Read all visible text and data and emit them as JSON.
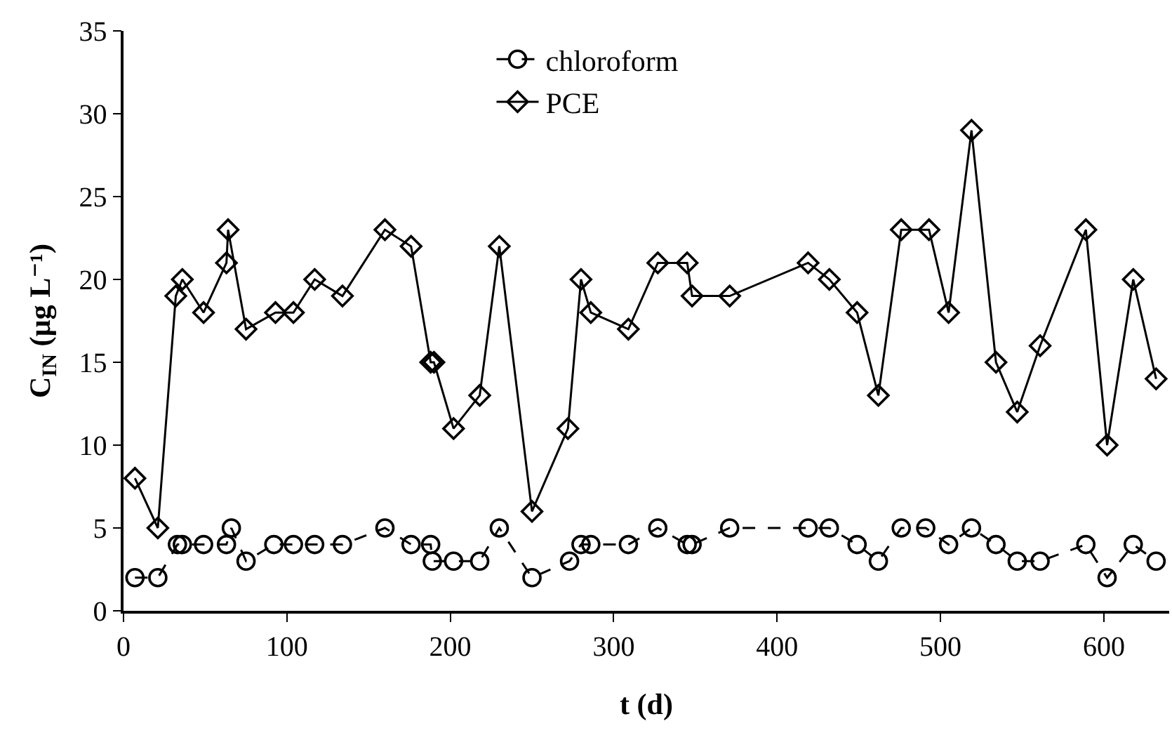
{
  "chart_data": {
    "type": "line",
    "xlabel": "t (d)",
    "ylabel": "C$_{IN}$ (µg L⁻¹)",
    "xlim": [
      0,
      640
    ],
    "xticks": [
      0,
      100,
      200,
      300,
      400,
      500,
      600
    ],
    "ylim": [
      0,
      35
    ],
    "yticks": [
      0,
      5,
      10,
      15,
      20,
      25,
      30,
      35
    ],
    "grid": false,
    "legend": "top",
    "series": [
      {
        "name": "chloroform",
        "color": "#000000",
        "marker": "circle",
        "line_style": "dashed",
        "x": [
          7,
          21,
          33,
          36,
          49,
          63,
          66,
          75,
          92,
          104,
          117,
          134,
          160,
          176,
          188,
          189,
          202,
          218,
          230,
          250,
          273,
          280,
          286,
          309,
          327,
          345,
          348,
          371,
          419,
          432,
          449,
          462,
          476,
          491,
          505,
          519,
          534,
          547,
          561,
          589,
          602,
          618,
          632
        ],
        "values": [
          2,
          2,
          4,
          4,
          4,
          4,
          5,
          3,
          4,
          4,
          4,
          4,
          5,
          4,
          4,
          3,
          3,
          3,
          5,
          2,
          3,
          4,
          4,
          4,
          5,
          4,
          4,
          5,
          5,
          5,
          4,
          3,
          5,
          5,
          4,
          5,
          4,
          3,
          3,
          4,
          2,
          4,
          3
        ]
      },
      {
        "name": "PCE",
        "color": "#000000",
        "marker": "diamond",
        "line_style": "solid",
        "x": [
          7,
          21,
          32,
          36,
          49,
          63,
          64,
          75,
          93,
          104,
          117,
          134,
          160,
          176,
          188,
          190,
          202,
          218,
          230,
          250,
          272,
          280,
          286,
          309,
          327,
          345,
          348,
          371,
          419,
          432,
          449,
          462,
          476,
          493,
          505,
          519,
          534,
          547,
          561,
          589,
          602,
          618,
          632
        ],
        "values": [
          8,
          5,
          19,
          20,
          18,
          21,
          23,
          17,
          18,
          18,
          20,
          19,
          23,
          22,
          15,
          15,
          11,
          13,
          22,
          6,
          11,
          20,
          18,
          17,
          21,
          21,
          19,
          19,
          21,
          20,
          18,
          13,
          23,
          23,
          18,
          29,
          15,
          12,
          16,
          23,
          10,
          20,
          14
        ]
      }
    ]
  }
}
